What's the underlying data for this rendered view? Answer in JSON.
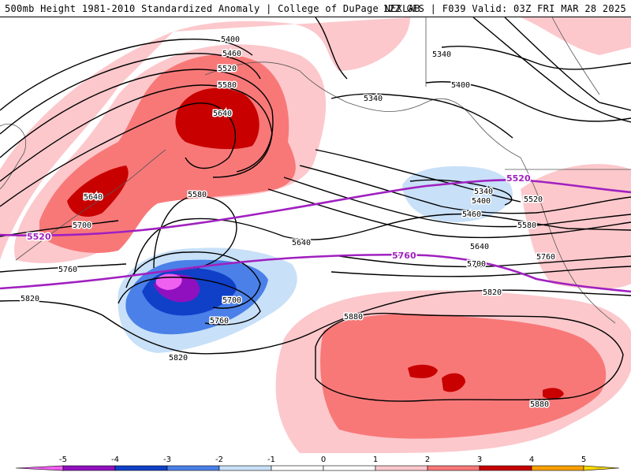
{
  "header": {
    "left_title": "500mb Height 1981-2010 Standardized Anomaly | College of DuPage NEXLAB",
    "right_title": "12Z GFS | F039 Valid: 03Z FRI MAR 28 2025"
  },
  "colors": {
    "neg5": "#f060f0",
    "neg4": "#9010c0",
    "neg3": "#1040c8",
    "neg2": "#4a80e8",
    "neg1": "#c8e0f8",
    "pos1": "#fcc8cc",
    "pos2": "#f87878",
    "pos3": "#c80000",
    "pos4": "#f8a000",
    "pos5": "#f8d800",
    "purple_contour": "#a020c0"
  },
  "contour_labels": [
    {
      "id": "c5400a",
      "text": "5400"
    },
    {
      "id": "c5460a",
      "text": "5460"
    },
    {
      "id": "c5520a",
      "text": "5520"
    },
    {
      "id": "c5580a",
      "text": "5580"
    },
    {
      "id": "c5640a",
      "text": "5640"
    },
    {
      "id": "c5640b",
      "text": "5640"
    },
    {
      "id": "c5700a",
      "text": "5700"
    },
    {
      "id": "c5760a",
      "text": "5760"
    },
    {
      "id": "c5820a",
      "text": "5820"
    },
    {
      "id": "c5580b",
      "text": "5580"
    },
    {
      "id": "c5640c",
      "text": "5640"
    },
    {
      "id": "c5700b",
      "text": "5700"
    },
    {
      "id": "c5760b",
      "text": "5760"
    },
    {
      "id": "c5820b",
      "text": "5820"
    },
    {
      "id": "c5880a",
      "text": "5880"
    },
    {
      "id": "c5880b",
      "text": "5880"
    },
    {
      "id": "c5340a",
      "text": "5340"
    },
    {
      "id": "c5340b",
      "text": "5340"
    },
    {
      "id": "c5400b",
      "text": "5400"
    },
    {
      "id": "c5340c",
      "text": "5340"
    },
    {
      "id": "c5400c",
      "text": "5400"
    },
    {
      "id": "c5460b",
      "text": "5460"
    },
    {
      "id": "c5520b",
      "text": "5520"
    },
    {
      "id": "c5580c",
      "text": "5580"
    },
    {
      "id": "c5640d",
      "text": "5640"
    },
    {
      "id": "c5700c",
      "text": "5700"
    },
    {
      "id": "c5760c",
      "text": "5760"
    },
    {
      "id": "c5820c",
      "text": "5820"
    }
  ],
  "purple_labels": [
    {
      "id": "p5520a",
      "text": "5520"
    },
    {
      "id": "p5520b",
      "text": "5520"
    },
    {
      "id": "p5760",
      "text": "5760"
    }
  ],
  "colorbar_ticks": [
    "-5",
    "-4",
    "-3",
    "-2",
    "-1",
    "0",
    "1",
    "2",
    "3",
    "4",
    "5"
  ]
}
